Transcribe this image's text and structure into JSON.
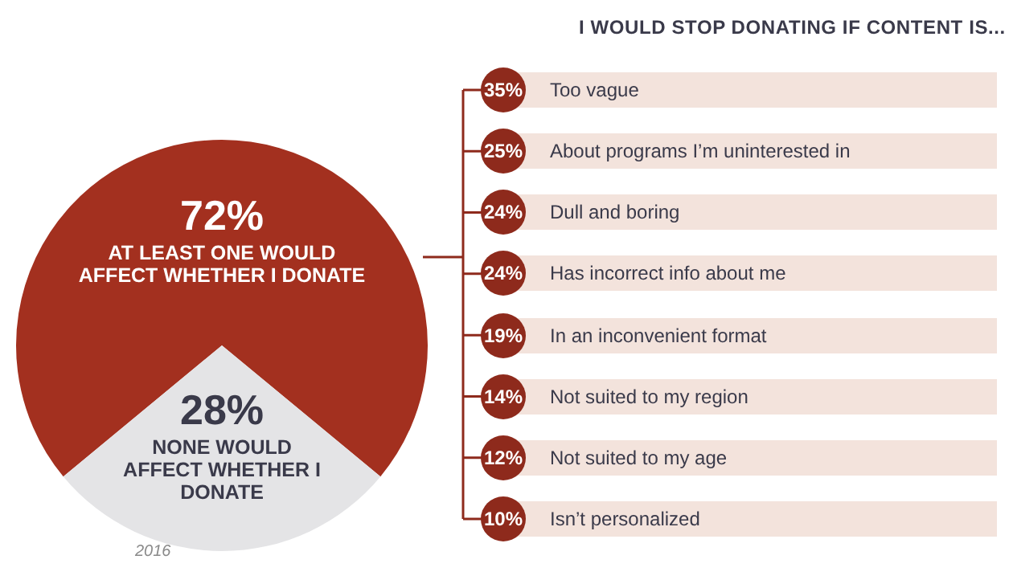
{
  "chart_data": [
    {
      "type": "pie",
      "categories": [
        "AT LEAST ONE WOULD AFFECT WHETHER I DONATE",
        "NONE WOULD AFFECT WHETHER I DONATE"
      ],
      "values": [
        72,
        28
      ],
      "colors": [
        "#a3301f",
        "#e4e4e6"
      ],
      "value_labels": [
        "72%",
        "28%"
      ],
      "legend": false,
      "annotations": [
        "2016"
      ]
    },
    {
      "type": "other",
      "title": "I WOULD STOP DONATING IF CONTENT IS...",
      "categories": [
        "Too vague",
        "About programs I’m uninterested in",
        "Dull and boring",
        "Has incorrect info about me",
        "In an inconvenient format",
        "Not suited to my region",
        "Not suited to my age",
        "Isn’t personalized"
      ],
      "values": [
        35,
        25,
        24,
        24,
        19,
        14,
        12,
        10
      ],
      "value_labels": [
        "35%",
        "25%",
        "24%",
        "24%",
        "19%",
        "14%",
        "12%",
        "10%"
      ]
    }
  ]
}
